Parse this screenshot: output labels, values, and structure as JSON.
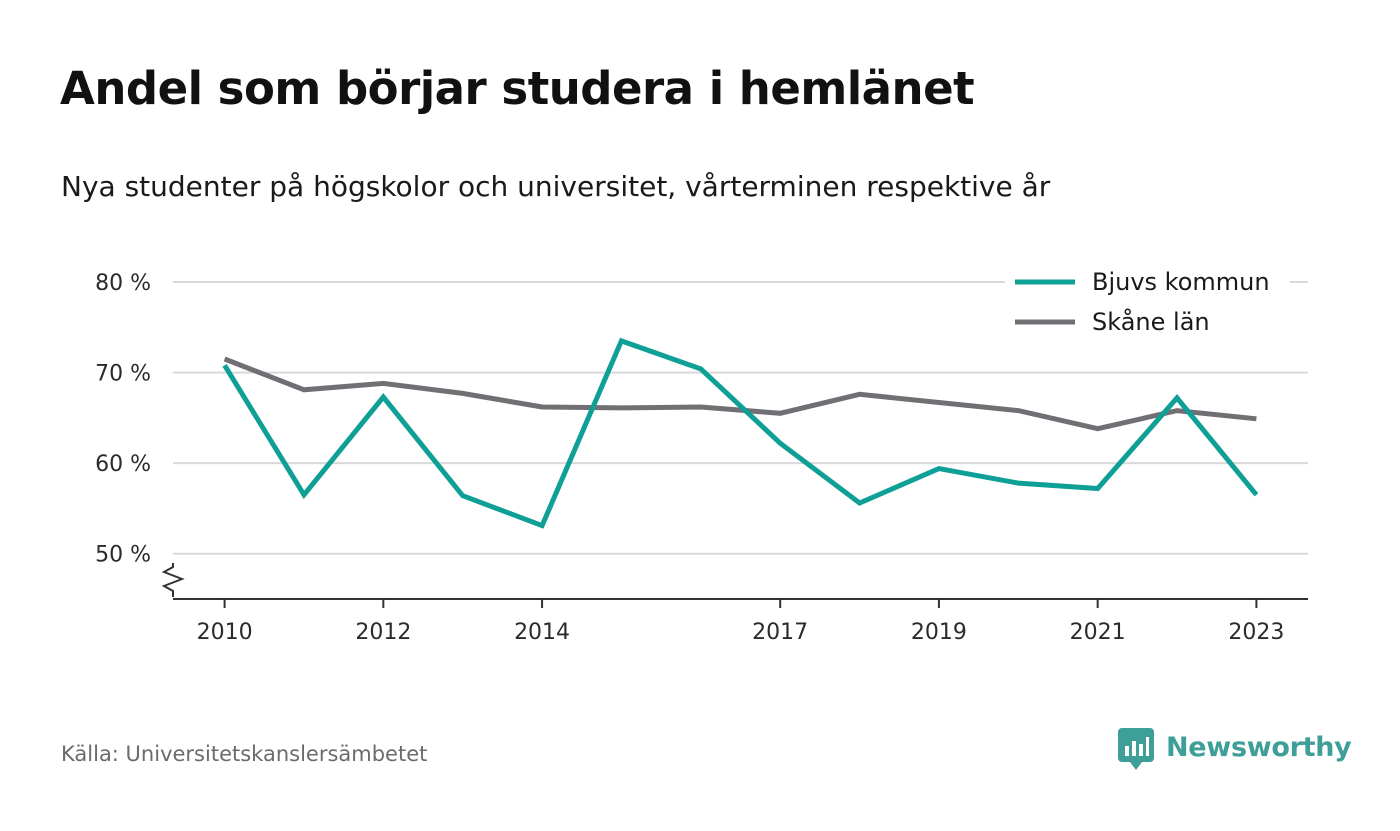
{
  "chart_data": {
    "type": "line",
    "title": "Andel som börjar studera i hemlänet",
    "subtitle": "Nya studenter på högskolor och universitet, vårterminen respektive år",
    "x": [
      2010,
      2011,
      2012,
      2013,
      2014,
      2015,
      2016,
      2017,
      2018,
      2019,
      2020,
      2021,
      2022,
      2023
    ],
    "x_tick_labels": [
      "2010",
      "2012",
      "2014",
      "2017",
      "2019",
      "2021",
      "2023"
    ],
    "y_tick_labels": [
      "80 %",
      "70 %",
      "60 %",
      "50 %"
    ],
    "y_ticks": [
      80,
      70,
      60,
      50
    ],
    "xlim": [
      2009.35,
      2023.65
    ],
    "ylim": [
      45,
      80
    ],
    "y_axis_break": true,
    "grid": "horizontal",
    "legend_position": "top-right",
    "series": [
      {
        "name": "Bjuvs kommun",
        "color": "#0e9f96",
        "values": [
          70.8,
          56.5,
          67.3,
          56.4,
          53.1,
          73.5,
          70.4,
          62.2,
          55.6,
          59.4,
          57.8,
          57.2,
          67.2,
          56.5
        ]
      },
      {
        "name": "Skåne län",
        "color": "#716f74",
        "values": [
          71.5,
          68.1,
          68.8,
          67.7,
          66.2,
          66.1,
          66.2,
          65.5,
          67.6,
          66.7,
          65.8,
          63.8,
          65.8,
          64.9
        ]
      }
    ]
  },
  "footer": {
    "source": "Källa: Universitetskanslersämbetet",
    "brand": "Newsworthy",
    "brand_color": "#3e9f98",
    "brand_icon": "newsworthy-logo-icon"
  }
}
